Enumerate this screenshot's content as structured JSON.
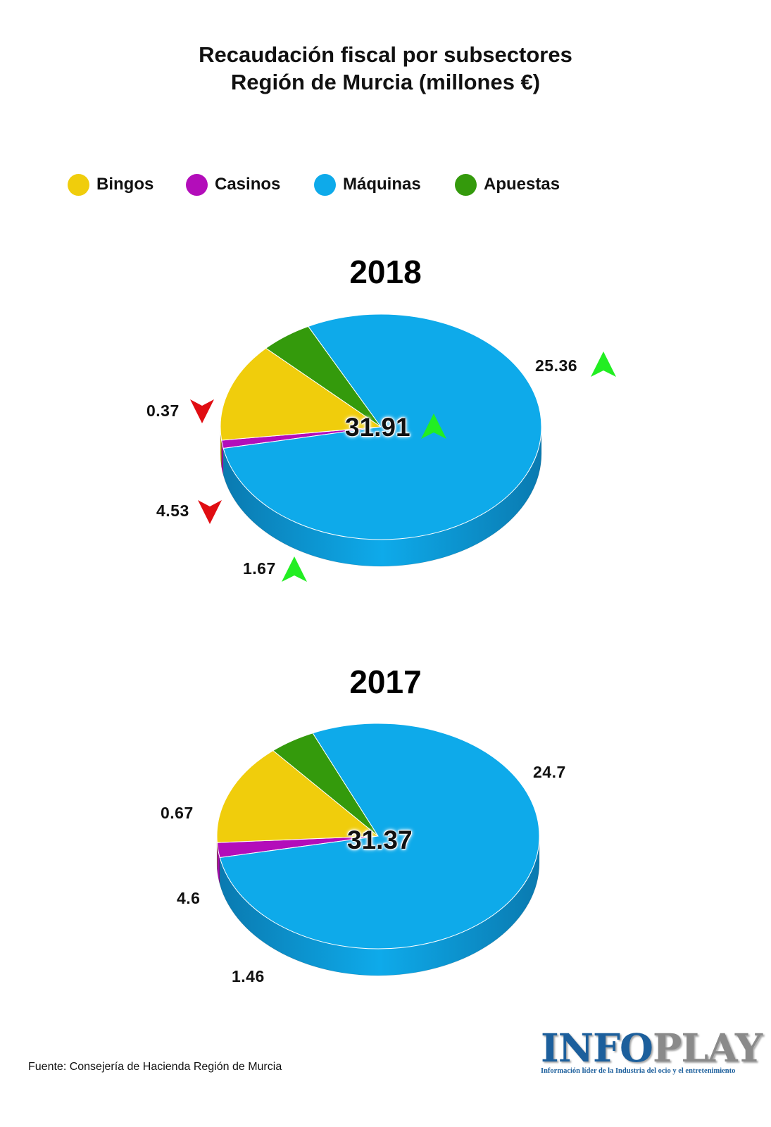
{
  "title_line1": "Recaudación fiscal por subsectores",
  "title_line2": "Región de Murcia (millones €)",
  "legend": [
    {
      "label": "Bingos",
      "color": "#f0cd0c"
    },
    {
      "label": "Casinos",
      "color": "#b30dba"
    },
    {
      "label": "Máquinas",
      "color": "#0eaaea"
    },
    {
      "label": "Apuestas",
      "color": "#349a0c"
    }
  ],
  "colors": {
    "up_arrow": "#22ee22",
    "down_arrow": "#e00d12"
  },
  "source": "Fuente: Consejería de Hacienda Región de Murcia",
  "logo": {
    "word_part1": "INFO",
    "word_part2": "PLAY",
    "tagline": "Información líder de la Industria del ocio y el entretenimiento"
  },
  "chart_data": [
    {
      "type": "pie",
      "title": "2018",
      "total": "31.91",
      "total_trend": "up",
      "categories": [
        "Bingos",
        "Casinos",
        "Máquinas",
        "Apuestas"
      ],
      "values": [
        4.53,
        0.37,
        25.36,
        1.67
      ],
      "labels": [
        "4.53",
        "0.37",
        "25.36",
        "1.67"
      ],
      "trends": [
        "down",
        "down",
        "up",
        "up"
      ]
    },
    {
      "type": "pie",
      "title": "2017",
      "total": "31.37",
      "categories": [
        "Bingos",
        "Casinos",
        "Máquinas",
        "Apuestas"
      ],
      "values": [
        4.6,
        0.67,
        24.7,
        1.46
      ],
      "labels": [
        "4.6",
        "0.67",
        "24.7",
        "1.46"
      ]
    }
  ]
}
